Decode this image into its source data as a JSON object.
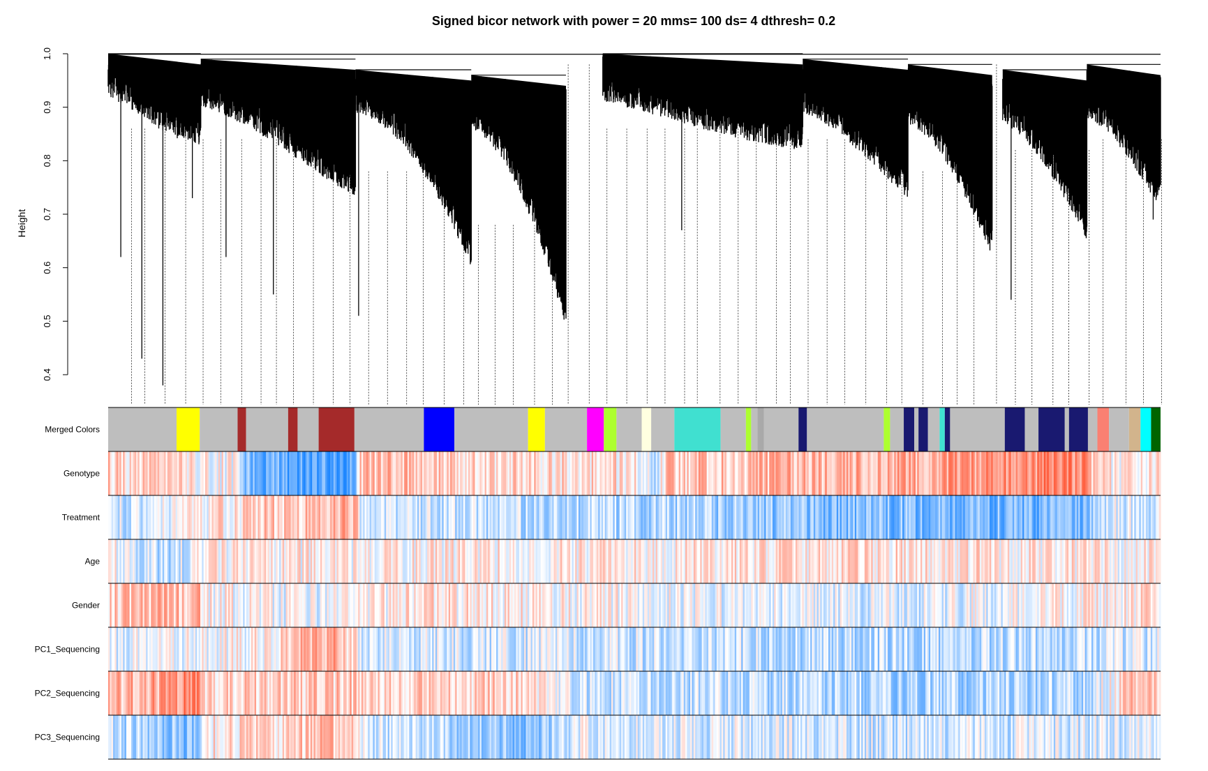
{
  "chart_data": {
    "type": "dendrogram",
    "title": "Signed bicor network with power =  20 mms= 100 ds= 4 dthresh= 0.2",
    "ylabel": "Height",
    "ylim": [
      0.4,
      1.0
    ],
    "yticks": [
      {
        "value": 0.4,
        "label": "0.4"
      },
      {
        "value": 0.5,
        "label": "0.5"
      },
      {
        "value": 0.6,
        "label": "0.6"
      },
      {
        "value": 0.7,
        "label": "0.7"
      },
      {
        "value": 0.8,
        "label": "0.8"
      },
      {
        "value": 0.9,
        "label": "0.9"
      },
      {
        "value": 1.0,
        "label": "1.0"
      }
    ],
    "grid": false,
    "dendrogram_clusters": [
      {
        "start": 0.0,
        "end": 0.088,
        "top": 1.0,
        "baseMin": 0.88,
        "baseMax": 0.97,
        "tailMin": 0.88,
        "tailMax": 0.93
      },
      {
        "start": 0.088,
        "end": 0.235,
        "top": 0.99,
        "baseMin": 0.86,
        "baseMax": 0.95,
        "tailMin": 0.78,
        "tailMax": 0.89
      },
      {
        "start": 0.235,
        "end": 0.345,
        "top": 0.97,
        "baseMin": 0.88,
        "baseMax": 0.94,
        "tailMin": 0.65,
        "tailMax": 0.8
      },
      {
        "start": 0.345,
        "end": 0.435,
        "top": 0.96,
        "baseMin": 0.82,
        "baseMax": 0.91,
        "tailMin": 0.54,
        "tailMax": 0.7
      },
      {
        "start": 0.47,
        "end": 0.66,
        "top": 1.0,
        "baseMin": 0.88,
        "baseMax": 0.96,
        "tailMin": 0.87,
        "tailMax": 0.93
      },
      {
        "start": 0.66,
        "end": 0.76,
        "top": 0.99,
        "baseMin": 0.86,
        "baseMax": 0.94,
        "tailMin": 0.78,
        "tailMax": 0.88
      },
      {
        "start": 0.76,
        "end": 0.84,
        "top": 0.98,
        "baseMin": 0.84,
        "baseMax": 0.92,
        "tailMin": 0.67,
        "tailMax": 0.8
      },
      {
        "start": 0.85,
        "end": 0.93,
        "top": 0.97,
        "baseMin": 0.84,
        "baseMax": 0.92,
        "tailMin": 0.7,
        "tailMax": 0.84
      },
      {
        "start": 0.93,
        "end": 1.0,
        "top": 0.98,
        "baseMin": 0.86,
        "baseMax": 0.93,
        "tailMin": 0.76,
        "tailMax": 0.88
      }
    ],
    "isolated_leaves": [
      {
        "pos": 0.012,
        "height": 0.62
      },
      {
        "pos": 0.032,
        "height": 0.43
      },
      {
        "pos": 0.052,
        "height": 0.38
      },
      {
        "pos": 0.08,
        "height": 0.73
      },
      {
        "pos": 0.112,
        "height": 0.62
      },
      {
        "pos": 0.157,
        "height": 0.55
      },
      {
        "pos": 0.238,
        "height": 0.51
      },
      {
        "pos": 0.545,
        "height": 0.67
      },
      {
        "pos": 0.858,
        "height": 0.54
      },
      {
        "pos": 0.993,
        "height": 0.69
      }
    ],
    "color_tracks": [
      {
        "label": "Merged Colors",
        "type": "modules",
        "segments": [
          {
            "start": 0.0,
            "end": 0.065,
            "color": "#bebebe"
          },
          {
            "start": 0.065,
            "end": 0.087,
            "color": "#ffff00"
          },
          {
            "start": 0.087,
            "end": 0.123,
            "color": "#bebebe"
          },
          {
            "start": 0.123,
            "end": 0.131,
            "color": "#a52a2a"
          },
          {
            "start": 0.131,
            "end": 0.171,
            "color": "#bebebe"
          },
          {
            "start": 0.171,
            "end": 0.18,
            "color": "#a52a2a"
          },
          {
            "start": 0.18,
            "end": 0.2,
            "color": "#bebebe"
          },
          {
            "start": 0.2,
            "end": 0.234,
            "color": "#a52a2a"
          },
          {
            "start": 0.234,
            "end": 0.3,
            "color": "#bebebe"
          },
          {
            "start": 0.3,
            "end": 0.329,
            "color": "#0000ff"
          },
          {
            "start": 0.329,
            "end": 0.399,
            "color": "#bebebe"
          },
          {
            "start": 0.399,
            "end": 0.415,
            "color": "#ffff00"
          },
          {
            "start": 0.415,
            "end": 0.455,
            "color": "#bebebe"
          },
          {
            "start": 0.455,
            "end": 0.471,
            "color": "#ff00ff"
          },
          {
            "start": 0.471,
            "end": 0.483,
            "color": "#adff2f"
          },
          {
            "start": 0.483,
            "end": 0.507,
            "color": "#bebebe"
          },
          {
            "start": 0.507,
            "end": 0.516,
            "color": "#ffffe0"
          },
          {
            "start": 0.516,
            "end": 0.538,
            "color": "#bebebe"
          },
          {
            "start": 0.538,
            "end": 0.582,
            "color": "#40e0d0"
          },
          {
            "start": 0.582,
            "end": 0.606,
            "color": "#bebebe"
          },
          {
            "start": 0.606,
            "end": 0.611,
            "color": "#adff2f"
          },
          {
            "start": 0.611,
            "end": 0.617,
            "color": "#bebebe"
          },
          {
            "start": 0.617,
            "end": 0.623,
            "color": "#a9a9a9"
          },
          {
            "start": 0.623,
            "end": 0.656,
            "color": "#bebebe"
          },
          {
            "start": 0.656,
            "end": 0.664,
            "color": "#191970"
          },
          {
            "start": 0.664,
            "end": 0.737,
            "color": "#bebebe"
          },
          {
            "start": 0.737,
            "end": 0.743,
            "color": "#adff2f"
          },
          {
            "start": 0.743,
            "end": 0.756,
            "color": "#bebebe"
          },
          {
            "start": 0.756,
            "end": 0.766,
            "color": "#191970"
          },
          {
            "start": 0.766,
            "end": 0.77,
            "color": "#bebebe"
          },
          {
            "start": 0.77,
            "end": 0.779,
            "color": "#191970"
          },
          {
            "start": 0.779,
            "end": 0.79,
            "color": "#bebebe"
          },
          {
            "start": 0.79,
            "end": 0.795,
            "color": "#40e0d0"
          },
          {
            "start": 0.795,
            "end": 0.8,
            "color": "#191970"
          },
          {
            "start": 0.8,
            "end": 0.852,
            "color": "#bebebe"
          },
          {
            "start": 0.852,
            "end": 0.871,
            "color": "#191970"
          },
          {
            "start": 0.871,
            "end": 0.884,
            "color": "#bebebe"
          },
          {
            "start": 0.884,
            "end": 0.909,
            "color": "#191970"
          },
          {
            "start": 0.909,
            "end": 0.913,
            "color": "#bebebe"
          },
          {
            "start": 0.913,
            "end": 0.931,
            "color": "#191970"
          },
          {
            "start": 0.931,
            "end": 0.94,
            "color": "#bebebe"
          },
          {
            "start": 0.94,
            "end": 0.951,
            "color": "#fa8072"
          },
          {
            "start": 0.951,
            "end": 0.97,
            "color": "#bebebe"
          },
          {
            "start": 0.97,
            "end": 0.981,
            "color": "#d2b48c"
          },
          {
            "start": 0.981,
            "end": 0.991,
            "color": "#00ffff"
          },
          {
            "start": 0.991,
            "end": 1.0,
            "color": "#006400"
          }
        ]
      },
      {
        "label": "Genotype",
        "type": "correlation",
        "seed": 11,
        "trend": [
          [
            0.0,
            0.25
          ],
          [
            0.12,
            0.0
          ],
          [
            0.13,
            -0.55
          ],
          [
            0.19,
            -0.75
          ],
          [
            0.235,
            -0.75
          ],
          [
            0.24,
            0.35
          ],
          [
            0.5,
            0.15
          ],
          [
            0.52,
            -0.35
          ],
          [
            0.53,
            0.3
          ],
          [
            0.75,
            0.45
          ],
          [
            0.85,
            0.6
          ],
          [
            0.93,
            0.65
          ],
          [
            0.94,
            0.1
          ],
          [
            1.0,
            0.15
          ]
        ]
      },
      {
        "label": "Treatment",
        "type": "correlation",
        "seed": 23,
        "trend": [
          [
            0.0,
            -0.25
          ],
          [
            0.1,
            0.1
          ],
          [
            0.2,
            0.4
          ],
          [
            0.235,
            0.4
          ],
          [
            0.24,
            -0.2
          ],
          [
            0.5,
            -0.3
          ],
          [
            0.62,
            -0.45
          ],
          [
            0.75,
            -0.55
          ],
          [
            0.93,
            -0.65
          ],
          [
            0.94,
            -0.15
          ],
          [
            1.0,
            -0.15
          ]
        ]
      },
      {
        "label": "Age",
        "type": "correlation",
        "seed": 37,
        "trend": [
          [
            0.0,
            0.0
          ],
          [
            0.06,
            -0.3
          ],
          [
            0.09,
            0.05
          ],
          [
            0.5,
            0.1
          ],
          [
            0.75,
            0.15
          ],
          [
            1.0,
            0.05
          ]
        ]
      },
      {
        "label": "Gender",
        "type": "correlation",
        "seed": 41,
        "trend": [
          [
            0.0,
            0.25
          ],
          [
            0.06,
            0.35
          ],
          [
            0.087,
            0.4
          ],
          [
            0.09,
            0.05
          ],
          [
            0.2,
            -0.1
          ],
          [
            0.3,
            0.15
          ],
          [
            0.5,
            0.0
          ],
          [
            0.75,
            -0.15
          ],
          [
            0.93,
            0.05
          ],
          [
            1.0,
            0.2
          ]
        ]
      },
      {
        "label": "PC1_Sequencing",
        "type": "correlation",
        "seed": 53,
        "trend": [
          [
            0.0,
            -0.15
          ],
          [
            0.15,
            0.05
          ],
          [
            0.18,
            0.4
          ],
          [
            0.21,
            0.5
          ],
          [
            0.235,
            0.2
          ],
          [
            0.24,
            -0.15
          ],
          [
            0.5,
            -0.2
          ],
          [
            0.75,
            -0.3
          ],
          [
            0.93,
            -0.25
          ],
          [
            1.0,
            -0.15
          ]
        ]
      },
      {
        "label": "PC2_Sequencing",
        "type": "correlation",
        "seed": 67,
        "trend": [
          [
            0.0,
            0.35
          ],
          [
            0.06,
            0.5
          ],
          [
            0.087,
            0.8
          ],
          [
            0.09,
            0.25
          ],
          [
            0.24,
            0.3
          ],
          [
            0.4,
            0.25
          ],
          [
            0.45,
            -0.2
          ],
          [
            0.6,
            -0.25
          ],
          [
            0.75,
            -0.35
          ],
          [
            0.93,
            -0.3
          ],
          [
            0.97,
            0.3
          ],
          [
            1.0,
            0.4
          ]
        ]
      },
      {
        "label": "PC3_Sequencing",
        "type": "correlation",
        "seed": 79,
        "trend": [
          [
            0.0,
            -0.25
          ],
          [
            0.06,
            -0.45
          ],
          [
            0.087,
            -0.6
          ],
          [
            0.09,
            0.1
          ],
          [
            0.2,
            0.3
          ],
          [
            0.235,
            0.4
          ],
          [
            0.24,
            -0.15
          ],
          [
            0.4,
            -0.45
          ],
          [
            0.415,
            -0.4
          ],
          [
            0.45,
            -0.1
          ],
          [
            0.75,
            -0.2
          ],
          [
            1.0,
            -0.15
          ]
        ]
      }
    ]
  }
}
